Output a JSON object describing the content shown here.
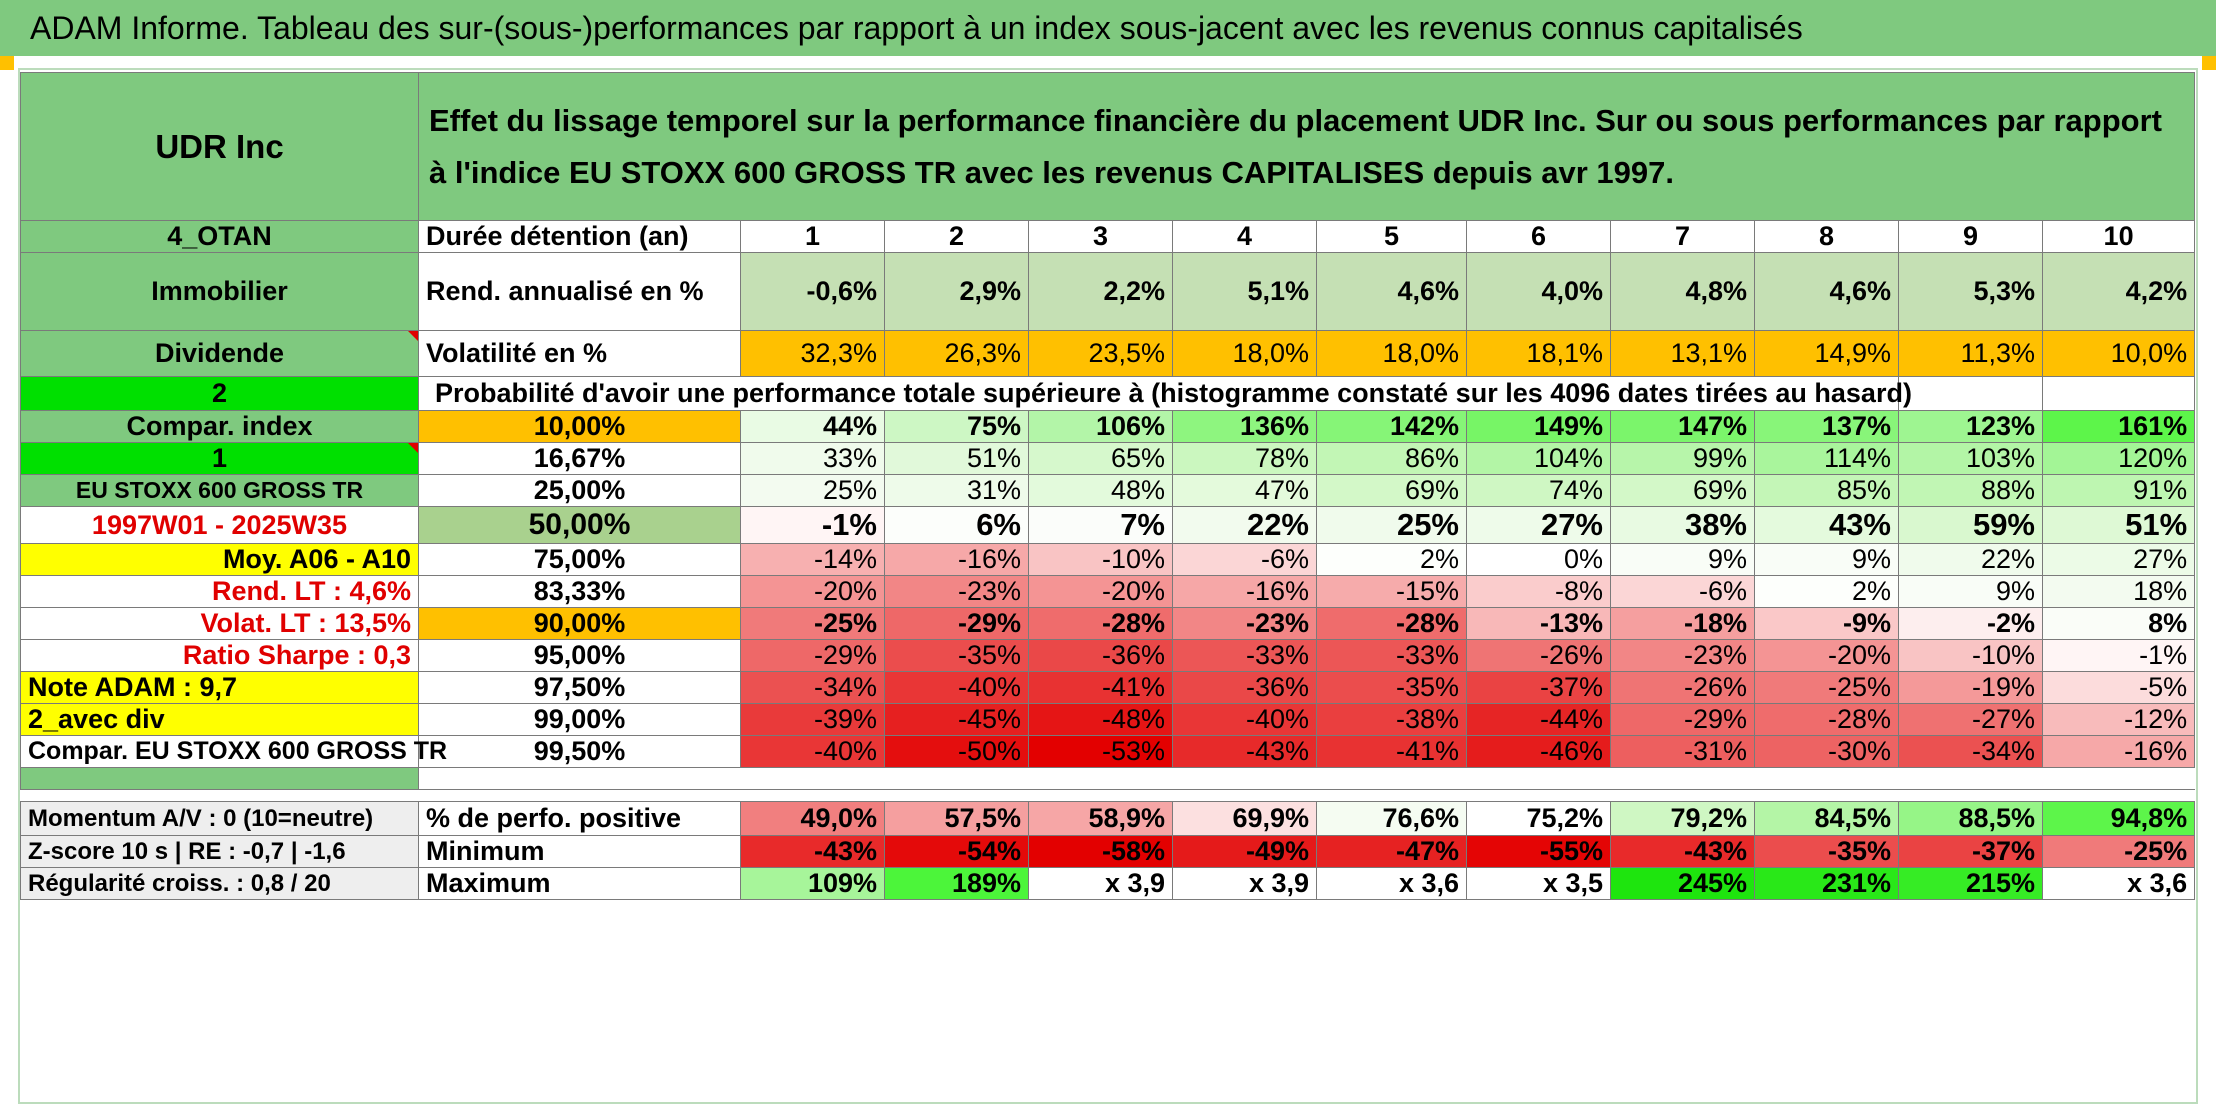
{
  "title": "ADAM Informe. Tableau des sur-(sous-)performances par rapport à un index sous-jacent avec les revenus connus capitalisés",
  "header": {
    "asset": "UDR Inc",
    "description": "Effet du lissage temporel sur la performance financière du placement UDR Inc. Sur ou sous performances par rapport à l'indice EU STOXX 600 GROSS TR avec les revenus CAPITALISES depuis avr 1997."
  },
  "colors": {
    "green": "#7fc97f",
    "bright_green": "#00e000",
    "yellow": "#ffff00",
    "orange": "#ffc000",
    "red_text": "#e00000"
  },
  "years_row": {
    "left": "4_OTAN",
    "label": "Durée détention (an)",
    "values": [
      "1",
      "2",
      "3",
      "4",
      "5",
      "6",
      "7",
      "8",
      "9",
      "10"
    ]
  },
  "rend_row": {
    "left": "Immobilier",
    "label": "Rend. annualisé en %",
    "values": [
      "-0,6%",
      "2,9%",
      "2,2%",
      "5,1%",
      "4,6%",
      "4,0%",
      "4,8%",
      "4,6%",
      "5,3%",
      "4,2%"
    ]
  },
  "vol_row": {
    "left": "Dividende",
    "label": "Volatilité en %",
    "values": [
      "32,3%",
      "26,3%",
      "23,5%",
      "18,0%",
      "18,0%",
      "18,1%",
      "13,1%",
      "14,9%",
      "11,3%",
      "10,0%"
    ]
  },
  "prob_row": {
    "left": "2",
    "text": "Probabilité d'avoir une performance totale supérieure à (histogramme constaté sur les 4096 dates tirées au hasard)"
  },
  "rows": [
    {
      "left": "Compar. index",
      "pct": "10,00%",
      "values": [
        "44%",
        "75%",
        "106%",
        "136%",
        "142%",
        "149%",
        "147%",
        "137%",
        "123%",
        "161%"
      ],
      "colors": [
        "#e9fbe4",
        "#cdf7c4",
        "#b3f5a8",
        "#8ef57f",
        "#86f577",
        "#77f566",
        "#7bf56b",
        "#88f579",
        "#9ef591",
        "#5df54a"
      ]
    },
    {
      "left": "1",
      "pct": "16,67%",
      "values": [
        "33%",
        "51%",
        "65%",
        "78%",
        "86%",
        "104%",
        "99%",
        "114%",
        "103%",
        "120%"
      ],
      "colors": [
        "#f0fbec",
        "#e1f9da",
        "#d6f8cc",
        "#cbf7bf",
        "#c2f6b5",
        "#b3f5a6",
        "#b7f5aa",
        "#a9f59c",
        "#b3f5a6",
        "#a3f596"
      ]
    },
    {
      "left": "EU STOXX 600 GROSS TR",
      "pct": "25,00%",
      "values": [
        "25%",
        "31%",
        "48%",
        "47%",
        "69%",
        "74%",
        "69%",
        "85%",
        "88%",
        "91%"
      ],
      "colors": [
        "#f3fbf0",
        "#eefbea",
        "#e3fadc",
        "#e4fadc",
        "#d3f8c8",
        "#cff7c3",
        "#d3f8c8",
        "#c4f6b7",
        "#c1f6b4",
        "#bef6b1"
      ]
    },
    {
      "left": "1997W01 - 2025W35",
      "pct": "50,00%",
      "values": [
        "-1%",
        "6%",
        "7%",
        "22%",
        "25%",
        "27%",
        "38%",
        "43%",
        "59%",
        "51%"
      ],
      "colors": [
        "#fff5f5",
        "#fcfefb",
        "#fbfdfa",
        "#f2fbee",
        "#f0fbec",
        "#eefbea",
        "#e8fae2",
        "#e4fadd",
        "#d9f8cf",
        "#def9d5"
      ]
    },
    {
      "left": "Moy. A06 - A10",
      "pct": "75,00%",
      "values": [
        "-14%",
        "-16%",
        "-10%",
        "-6%",
        "2%",
        "0%",
        "9%",
        "9%",
        "22%",
        "27%"
      ],
      "colors": [
        "#f7b0b0",
        "#f6a8a8",
        "#f9c4c4",
        "#fbd6d6",
        "#fdfffc",
        "#ffffff",
        "#f9fdf7",
        "#f9fdf7",
        "#f0fbec",
        "#ecfbe7"
      ]
    },
    {
      "left": "Rend. LT :   4,6%",
      "pct": "83,33%",
      "values": [
        "-20%",
        "-23%",
        "-20%",
        "-16%",
        "-15%",
        "-8%",
        "-6%",
        "2%",
        "9%",
        "18%"
      ],
      "colors": [
        "#f49494",
        "#f28686",
        "#f49494",
        "#f6a7a7",
        "#f6abab",
        "#facccc",
        "#fbd6d6",
        "#fdfffc",
        "#f9fdf7",
        "#f3fbf0"
      ]
    },
    {
      "left": "Volat. LT :   13,5%",
      "pct": "90,00%",
      "values": [
        "-25%",
        "-29%",
        "-28%",
        "-23%",
        "-28%",
        "-13%",
        "-18%",
        "-9%",
        "-2%",
        "8%"
      ],
      "colors": [
        "#f07a7a",
        "#ee6868",
        "#ef6c6c",
        "#f28686",
        "#ef6c6c",
        "#f8b8b8",
        "#f59f9f",
        "#fac8c8",
        "#fdeeee",
        "#fafdf8"
      ]
    },
    {
      "left": "Ratio Sharpe :    0,3",
      "pct": "95,00%",
      "values": [
        "-29%",
        "-35%",
        "-36%",
        "-33%",
        "-33%",
        "-26%",
        "-23%",
        "-20%",
        "-10%",
        "-1%"
      ],
      "colors": [
        "#ee6868",
        "#eb4d4d",
        "#ea4848",
        "#ec5656",
        "#ec5656",
        "#ef7474",
        "#f28686",
        "#f49494",
        "#f9c4c4",
        "#fff5f5"
      ]
    },
    {
      "left": "Note ADAM : 9,7",
      "pct": "97,50%",
      "values": [
        "-34%",
        "-40%",
        "-41%",
        "-36%",
        "-35%",
        "-37%",
        "-26%",
        "-25%",
        "-19%",
        "-5%"
      ],
      "colors": [
        "#eb5151",
        "#e93636",
        "#e83232",
        "#ea4848",
        "#eb4d4d",
        "#ea4343",
        "#ef7474",
        "#f07a7a",
        "#f49999",
        "#fcdcdc"
      ]
    },
    {
      "left": "2_avec div",
      "pct": "99,00%",
      "values": [
        "-39%",
        "-45%",
        "-48%",
        "-40%",
        "-38%",
        "-44%",
        "-29%",
        "-28%",
        "-27%",
        "-12%"
      ],
      "colors": [
        "#e93a3a",
        "#e62020",
        "#e51515",
        "#e93636",
        "#ea3f3f",
        "#e62525",
        "#ee6868",
        "#ef6c6c",
        "#ef7171",
        "#f8bbbb"
      ]
    },
    {
      "left": "Compar. EU STOXX 600 GROSS TR",
      "pct": "99,50%",
      "values": [
        "-40%",
        "-50%",
        "-53%",
        "-43%",
        "-41%",
        "-46%",
        "-31%",
        "-30%",
        "-34%",
        "-16%"
      ],
      "colors": [
        "#e93636",
        "#e40e0e",
        "#e30000",
        "#e72a2a",
        "#e83232",
        "#e51c1c",
        "#ed5f5f",
        "#ed6363",
        "#eb5151",
        "#f6a8a8"
      ]
    }
  ],
  "stats": [
    {
      "left": "Momentum A/V : 0 (10=neutre)",
      "label": "% de perfo. positive",
      "values": [
        "49,0%",
        "57,5%",
        "58,9%",
        "69,9%",
        "76,6%",
        "75,2%",
        "79,2%",
        "84,5%",
        "88,5%",
        "94,8%"
      ],
      "colors": [
        "#f17f7f",
        "#f59f9f",
        "#f6a6a6",
        "#fce0e0",
        "#f5fcf2",
        "#ffffff",
        "#cff7c3",
        "#b4f5a6",
        "#96f587",
        "#5df54a"
      ]
    },
    {
      "left": "Z-score 10 s | RE : -0,7 | -1,6",
      "label": "Minimum",
      "values": [
        "-43%",
        "-54%",
        "-58%",
        "-49%",
        "-47%",
        "-55%",
        "-43%",
        "-35%",
        "-37%",
        "-25%"
      ],
      "colors": [
        "#e82a2a",
        "#e40a0a",
        "#e30000",
        "#e51a1a",
        "#e62222",
        "#e40505",
        "#e82a2a",
        "#eb4d4d",
        "#ea4343",
        "#f07a7a"
      ]
    },
    {
      "left": "Régularité croiss. : 0,8 / 20",
      "label": "Maximum",
      "values": [
        "109%",
        "189%",
        "x 3,9",
        "x 3,9",
        "x 3,6",
        "x 3,5",
        "245%",
        "231%",
        "215%",
        "x 3,6"
      ],
      "colors": [
        "#a7f59a",
        "#4cf53a",
        "#ffffff",
        "#ffffff",
        "#ffffff",
        "#ffffff",
        "#1ee50e",
        "#29e818",
        "#36ec25",
        "#ffffff"
      ]
    }
  ]
}
